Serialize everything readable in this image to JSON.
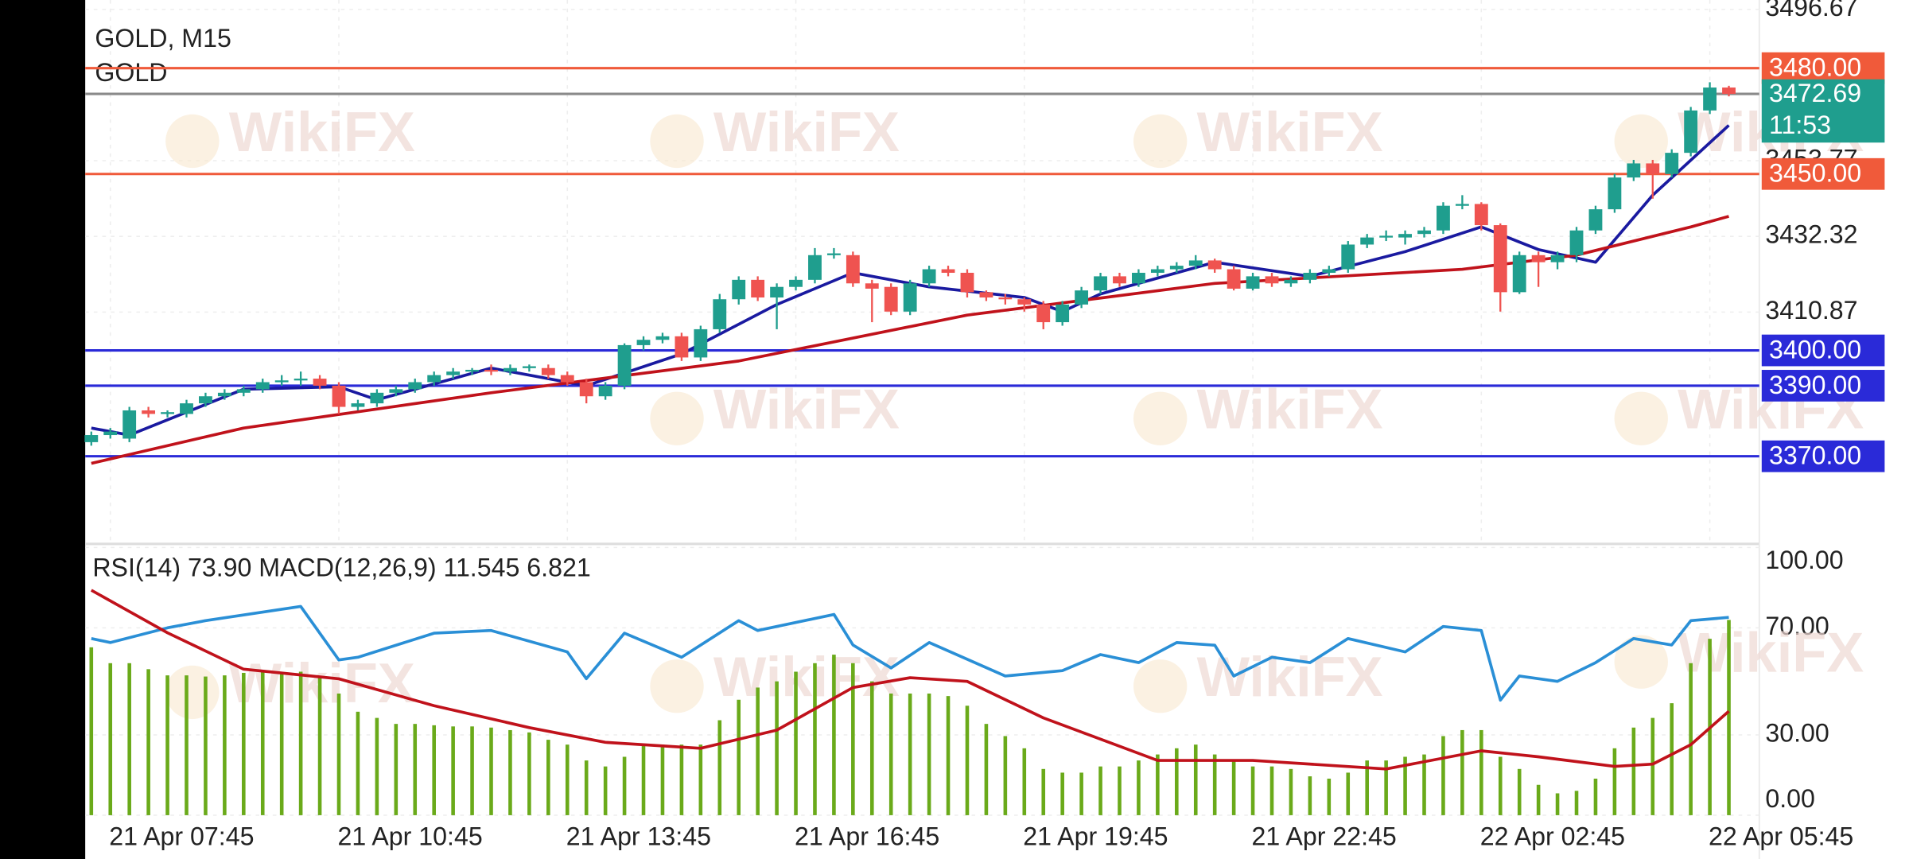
{
  "chart_data": [
    {
      "type": "candlestick",
      "title": "GOLD, M15",
      "subtitle": "GOLD",
      "watermark": "WikiFX",
      "categories": [
        null,
        "21 Apr 07:45",
        null,
        null,
        null,
        null,
        null,
        null,
        null,
        null,
        null,
        null,
        null,
        "21 Apr 10:45",
        null,
        null,
        null,
        null,
        null,
        null,
        null,
        null,
        null,
        null,
        null,
        "21 Apr 13:45",
        null,
        null,
        null,
        null,
        null,
        null,
        null,
        null,
        null,
        null,
        null,
        "21 Apr 16:45",
        null,
        null,
        null,
        null,
        null,
        null,
        null,
        null,
        null,
        null,
        null,
        "21 Apr 19:45",
        null,
        null,
        null,
        null,
        null,
        null,
        null,
        null,
        null,
        null,
        null,
        "21 Apr 22:45",
        null,
        null,
        null,
        null,
        null,
        null,
        null,
        null,
        null,
        null,
        null,
        "22 Apr 02:45",
        null,
        null,
        null,
        null,
        null,
        null,
        null,
        null,
        null,
        null,
        null,
        "22 Apr 05:45",
        null
      ],
      "open": [
        3374,
        3376,
        3375,
        3383,
        3382,
        3382,
        3385,
        3387,
        3388,
        3389,
        3391,
        3391.5,
        3392,
        3390,
        3384,
        3385,
        3388,
        3389,
        3391,
        3393,
        3394,
        3394.5,
        3394,
        3395,
        3395,
        3393,
        3391,
        3387,
        3390,
        3401.5,
        3403,
        3404,
        3398,
        3406,
        3414.5,
        3420,
        3415,
        3418,
        3420,
        3427,
        3427,
        3419,
        3418,
        3411,
        3419,
        3423,
        3422,
        3416.5,
        3415,
        3414.5,
        3413,
        3408,
        3413,
        3417,
        3421,
        3419,
        3422,
        3423,
        3424,
        3425.5,
        3423,
        3417.5,
        3421,
        3419,
        3420,
        3422,
        3423,
        3430,
        3432,
        3432,
        3433,
        3434,
        3441,
        3441.5,
        3435.5,
        3416.5,
        3427,
        3425,
        3427,
        3434,
        3440,
        3449,
        3453,
        3450,
        3456,
        3468,
        3474.5
      ],
      "high": [
        3377,
        3378,
        3384,
        3384,
        3383,
        3386,
        3388,
        3389,
        3390,
        3392,
        3393,
        3394,
        3393,
        3391,
        3386,
        3389,
        3390,
        3392,
        3394,
        3395,
        3395,
        3396,
        3396,
        3396,
        3396,
        3394,
        3392,
        3391,
        3402,
        3404,
        3405,
        3405,
        3407,
        3416,
        3421,
        3421,
        3419,
        3421,
        3429,
        3429,
        3428,
        3420,
        3419,
        3420,
        3424,
        3424,
        3423,
        3417,
        3416,
        3415,
        3414,
        3414,
        3418,
        3422,
        3422,
        3423,
        3424,
        3425,
        3427,
        3426,
        3424,
        3422,
        3422,
        3421,
        3423,
        3424,
        3431,
        3433,
        3434,
        3434,
        3435,
        3442,
        3444,
        3442,
        3436,
        3428,
        3428,
        3428,
        3435,
        3441,
        3450,
        3454,
        3454,
        3457,
        3469,
        3476,
        3475
      ],
      "low": [
        3373,
        3375,
        3374,
        3381,
        3381,
        3381,
        3384,
        3386,
        3387,
        3388,
        3390,
        3390,
        3389,
        3382,
        3383,
        3384,
        3387,
        3388,
        3390,
        3392,
        3393,
        3393,
        3393,
        3394,
        3392,
        3390,
        3385,
        3386,
        3389,
        3400,
        3402,
        3397,
        3397,
        3405,
        3413,
        3414,
        3406,
        3417,
        3419,
        3426,
        3418,
        3408,
        3410,
        3410,
        3418,
        3421,
        3415,
        3414,
        3413,
        3411,
        3406,
        3407,
        3412,
        3416,
        3418,
        3418,
        3421,
        3422,
        3423,
        3422,
        3417,
        3417,
        3418,
        3418,
        3419,
        3421,
        3422,
        3429,
        3431,
        3430,
        3432,
        3433,
        3440,
        3434,
        3411,
        3416,
        3418,
        3423,
        3425,
        3433,
        3439,
        3448,
        3443,
        3449,
        3455,
        3467,
        3472
      ],
      "close": [
        3376,
        3377,
        3383,
        3382,
        3382.5,
        3385,
        3387,
        3388,
        3389,
        3391,
        3391.5,
        3392,
        3390,
        3384,
        3385,
        3388,
        3389,
        3391,
        3393,
        3394,
        3394.5,
        3394,
        3395,
        3395.5,
        3393,
        3391,
        3387,
        3390,
        3401.5,
        3403,
        3404,
        3398,
        3406,
        3414.5,
        3420,
        3415,
        3418,
        3420,
        3427,
        3427.5,
        3419,
        3417.5,
        3411,
        3419,
        3423,
        3422,
        3416.5,
        3415,
        3414.5,
        3413,
        3408,
        3413,
        3417,
        3421,
        3419,
        3422,
        3423,
        3424,
        3425.5,
        3423,
        3417.5,
        3421,
        3419,
        3420,
        3422,
        3423,
        3430,
        3432,
        3432.5,
        3433,
        3434,
        3441,
        3441.5,
        3435.5,
        3416.5,
        3427,
        3425,
        3427,
        3434,
        3440,
        3449,
        3453,
        3450,
        3456,
        3468,
        3474.5,
        3472.69
      ],
      "up_color": "#1f9e8e",
      "down_color": "#ef5350",
      "series": [
        {
          "color": "#1a1aa0",
          "x": [
            0,
            2,
            8,
            13,
            15,
            21,
            26,
            31,
            36,
            40,
            44,
            49,
            51,
            53,
            59,
            64,
            69,
            73,
            76,
            79,
            82,
            86
          ],
          "values": [
            3378,
            3376,
            3389,
            3389.7,
            3386,
            3395,
            3390,
            3399,
            3413,
            3422,
            3418,
            3415,
            3411,
            3416,
            3425,
            3421,
            3428,
            3435,
            3428.6,
            3425,
            3444,
            3463.8
          ]
        },
        {
          "color": "#c0121b",
          "x": [
            0,
            8,
            21,
            34,
            46,
            59,
            72,
            78,
            84,
            86
          ],
          "values": [
            3368,
            3378,
            3388,
            3397,
            3410,
            3419,
            3423,
            3427,
            3435,
            3438
          ]
        }
      ],
      "ylim": [
        3345.86,
        3499.31
      ],
      "yticks": [
        3496.67,
        3453.77,
        3432.32,
        3410.87
      ],
      "grid": true,
      "levels": [
        {
          "value": 3480,
          "label": "3480.00",
          "color": "#f05a3a"
        },
        {
          "value": 3450,
          "label": "3450.00",
          "color": "#f05a3a"
        },
        {
          "value": 3400,
          "label": "3400.00",
          "color": "#2a2ad8"
        },
        {
          "value": 3390,
          "label": "3390.00",
          "color": "#2a2ad8"
        },
        {
          "value": 3370,
          "label": "3370.00",
          "color": "#2a2ad8"
        }
      ],
      "current_price": {
        "value": 3472.69,
        "label": "3472.69",
        "countdown": "11:53",
        "color": "#1f9e8e"
      }
    },
    {
      "type": "rsi_macd",
      "title": "RSI(14) 73.90 MACD(12,26,9) 11.545 6.821",
      "watermark": "WikiFX",
      "ylim": [
        0,
        100
      ],
      "yticks": [
        {
          "value": 100,
          "label": "100.00"
        },
        {
          "value": 70,
          "label": "70.00"
        },
        {
          "value": 30,
          "label": "30.00"
        },
        {
          "value": 0,
          "label": "0.00"
        }
      ],
      "y2lim": [
        1.45,
        15.29
      ],
      "series": [
        {
          "type": "line",
          "color": "#2a8fd6",
          "x": [
            0,
            1,
            4,
            6,
            11,
            13,
            14,
            18,
            21,
            25,
            26,
            28,
            31,
            34,
            35,
            39,
            40,
            42,
            44,
            48,
            51,
            53,
            55,
            57,
            59,
            60,
            62,
            64,
            66,
            69,
            71,
            73,
            74,
            75,
            77,
            79,
            81,
            83,
            84,
            86
          ],
          "values": [
            66,
            64.5,
            70,
            72.7,
            78,
            58,
            59,
            68,
            69,
            61,
            51,
            68,
            59,
            72.7,
            69,
            75,
            63.6,
            55,
            64.5,
            52,
            54,
            60,
            57,
            64.5,
            63.5,
            52,
            59,
            57,
            66,
            61,
            70.5,
            69,
            43,
            52,
            50,
            57,
            66,
            63.6,
            72.7,
            73.9
          ]
        },
        {
          "type": "bar",
          "axis": "y2",
          "color": "#6aaa1a",
          "values": [
            10.13,
            9.31,
            9.31,
            9.0,
            8.68,
            8.68,
            8.62,
            8.68,
            8.81,
            8.87,
            8.87,
            8.87,
            8.56,
            7.74,
            6.8,
            6.48,
            6.17,
            6.17,
            6.1,
            6.04,
            6.04,
            5.98,
            5.85,
            5.73,
            5.35,
            5.1,
            4.28,
            3.97,
            4.47,
            5.1,
            5.1,
            5.1,
            5.1,
            6.36,
            7.42,
            8.05,
            8.37,
            8.87,
            9.31,
            9.75,
            9.31,
            8.37,
            7.74,
            7.74,
            7.74,
            7.61,
            7.11,
            6.17,
            5.54,
            4.91,
            3.84,
            3.65,
            3.65,
            3.97,
            3.97,
            4.28,
            4.59,
            4.91,
            5.1,
            4.59,
            4.28,
            3.97,
            3.97,
            3.84,
            3.46,
            3.34,
            3.65,
            4.28,
            4.28,
            4.47,
            4.59,
            5.54,
            5.85,
            5.85,
            4.47,
            3.84,
            3.02,
            2.58,
            2.71,
            3.34,
            4.91,
            5.98,
            6.48,
            7.24,
            9.31,
            10.57,
            11.545
          ]
        },
        {
          "type": "line",
          "axis": "y2",
          "color": "#c0121b",
          "x": [
            0,
            4,
            8,
            13,
            18,
            23,
            27,
            32,
            36,
            40,
            43,
            46,
            50,
            56,
            61,
            68,
            73,
            76,
            80,
            82,
            84,
            86
          ],
          "values": [
            13.08,
            10.88,
            9.0,
            8.5,
            7.11,
            5.98,
            5.22,
            4.91,
            5.85,
            8.05,
            8.56,
            8.37,
            6.48,
            4.28,
            4.28,
            3.84,
            4.78,
            4.47,
            3.97,
            4.09,
            5.1,
            6.821
          ]
        }
      ]
    }
  ]
}
